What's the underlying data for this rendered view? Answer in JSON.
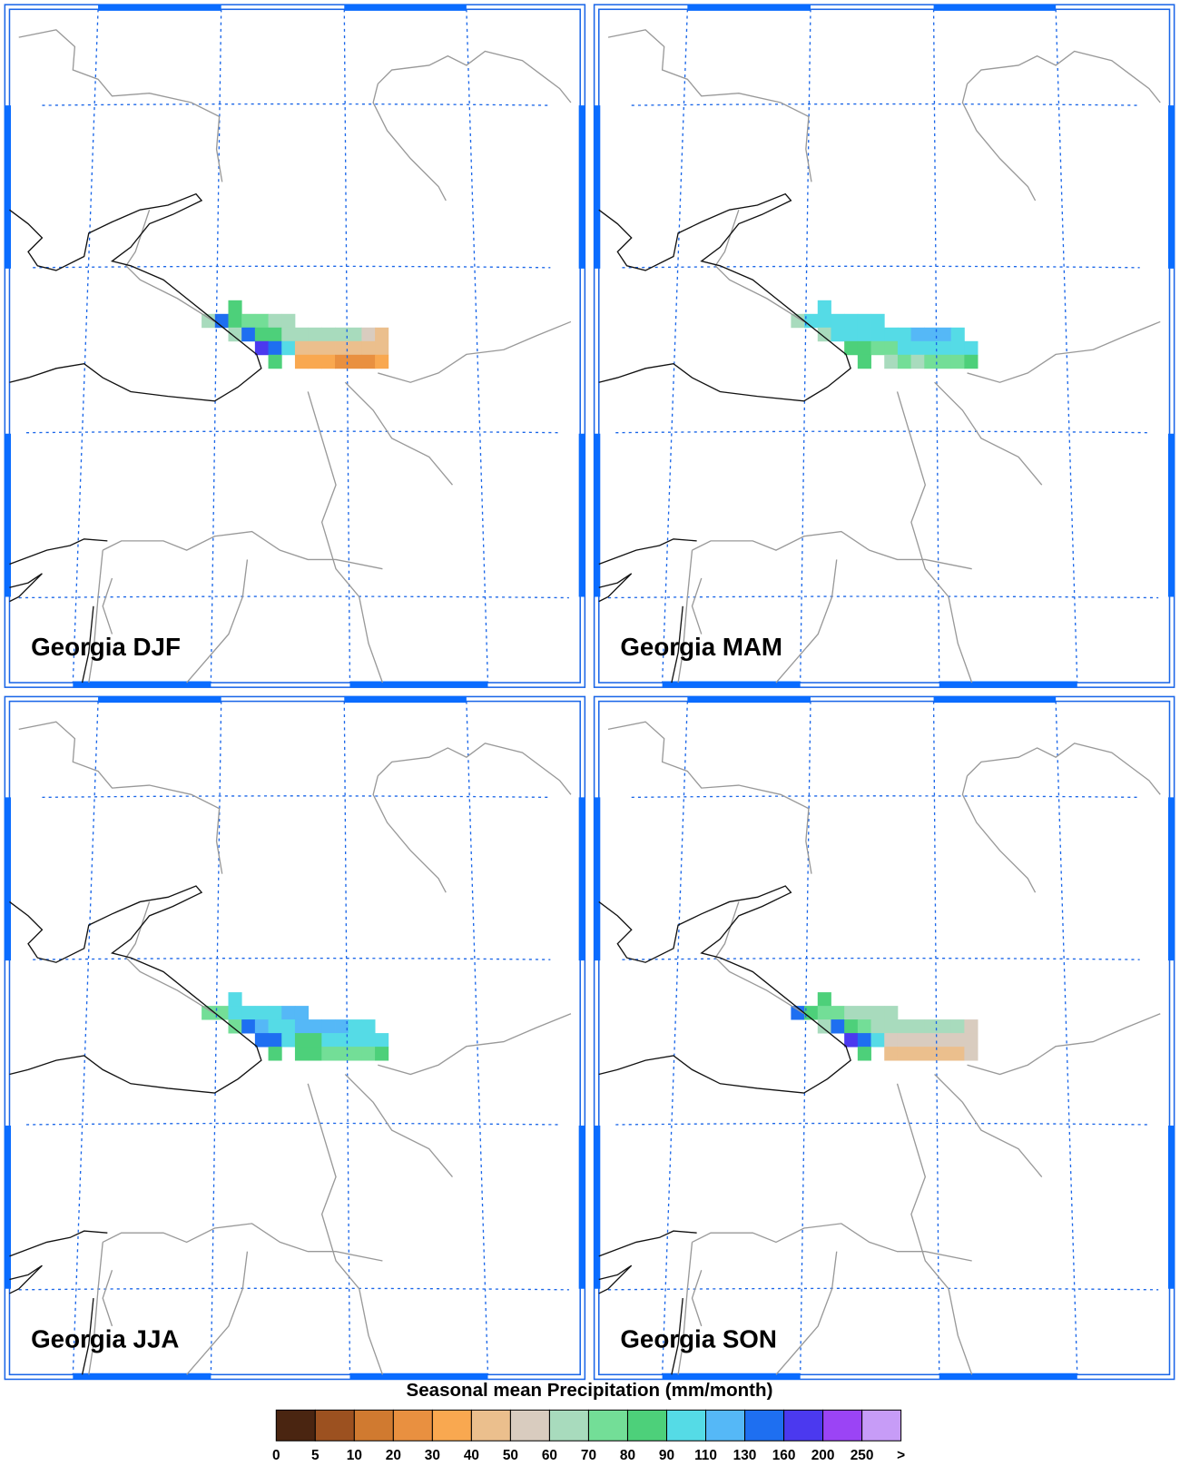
{
  "panels": [
    {
      "title": "Georgia DJF",
      "grid": [
        [
          null,
          null,
          9,
          null,
          null,
          null,
          null,
          null,
          null,
          null,
          null,
          null,
          null,
          null
        ],
        [
          7,
          12,
          9,
          8,
          8,
          7,
          7,
          null,
          null,
          null,
          null,
          null,
          null,
          null
        ],
        [
          null,
          null,
          7,
          12,
          9,
          9,
          7,
          7,
          7,
          7,
          7,
          7,
          6,
          5
        ],
        [
          null,
          null,
          null,
          null,
          13,
          12,
          10,
          5,
          5,
          5,
          5,
          5,
          5,
          5
        ],
        [
          null,
          null,
          null,
          null,
          null,
          9,
          null,
          4,
          4,
          4,
          3,
          3,
          3,
          4
        ]
      ]
    },
    {
      "title": "Georgia MAM",
      "grid": [
        [
          null,
          null,
          10,
          null,
          null,
          null,
          null,
          null,
          null,
          null,
          null,
          null,
          null,
          null
        ],
        [
          7,
          10,
          10,
          10,
          10,
          10,
          10,
          null,
          null,
          null,
          null,
          null,
          null,
          null
        ],
        [
          null,
          null,
          7,
          10,
          10,
          10,
          10,
          10,
          10,
          11,
          11,
          11,
          10,
          null
        ],
        [
          null,
          null,
          null,
          null,
          9,
          9,
          8,
          8,
          10,
          10,
          10,
          10,
          10,
          10
        ],
        [
          null,
          null,
          null,
          null,
          null,
          9,
          null,
          7,
          8,
          7,
          8,
          8,
          8,
          9
        ]
      ]
    },
    {
      "title": "Georgia JJA",
      "grid": [
        [
          null,
          null,
          10,
          null,
          null,
          null,
          null,
          null,
          null,
          null,
          null,
          null,
          null,
          null
        ],
        [
          8,
          8,
          10,
          10,
          10,
          10,
          11,
          11,
          null,
          null,
          null,
          null,
          null,
          null
        ],
        [
          null,
          null,
          8,
          12,
          11,
          10,
          10,
          11,
          11,
          11,
          11,
          10,
          10,
          null
        ],
        [
          null,
          null,
          null,
          null,
          12,
          12,
          10,
          9,
          9,
          10,
          10,
          10,
          10,
          10
        ],
        [
          null,
          null,
          null,
          null,
          null,
          9,
          null,
          9,
          9,
          8,
          8,
          8,
          8,
          9
        ]
      ]
    },
    {
      "title": "Georgia SON",
      "grid": [
        [
          null,
          null,
          9,
          null,
          null,
          null,
          null,
          null,
          null,
          null,
          null,
          null,
          null,
          null
        ],
        [
          12,
          9,
          8,
          8,
          7,
          7,
          7,
          7,
          null,
          null,
          null,
          null,
          null,
          null
        ],
        [
          null,
          null,
          7,
          12,
          9,
          8,
          7,
          7,
          7,
          7,
          7,
          7,
          7,
          6
        ],
        [
          null,
          null,
          null,
          null,
          13,
          12,
          10,
          6,
          6,
          6,
          6,
          6,
          6,
          6
        ],
        [
          null,
          null,
          null,
          null,
          null,
          9,
          null,
          5,
          5,
          5,
          5,
          5,
          5,
          6
        ]
      ]
    }
  ],
  "colorbar": {
    "title": "Seasonal mean Precipitation (mm/month)",
    "labels": [
      0,
      5,
      10,
      20,
      30,
      40,
      50,
      60,
      70,
      80,
      90,
      110,
      130,
      160,
      200,
      250,
      ">"
    ],
    "colors": [
      "#4a2511",
      "#9c5120",
      "#d07a30",
      "#e99040",
      "#f9a850",
      "#ebbf8d",
      "#d9ccbf",
      "#a8dbbd",
      "#73de97",
      "#4dd07a",
      "#55dbe6",
      "#55b8f7",
      "#1e6ff1",
      "#4b39ef",
      "#9b44f5",
      "#c79cf7"
    ]
  }
}
